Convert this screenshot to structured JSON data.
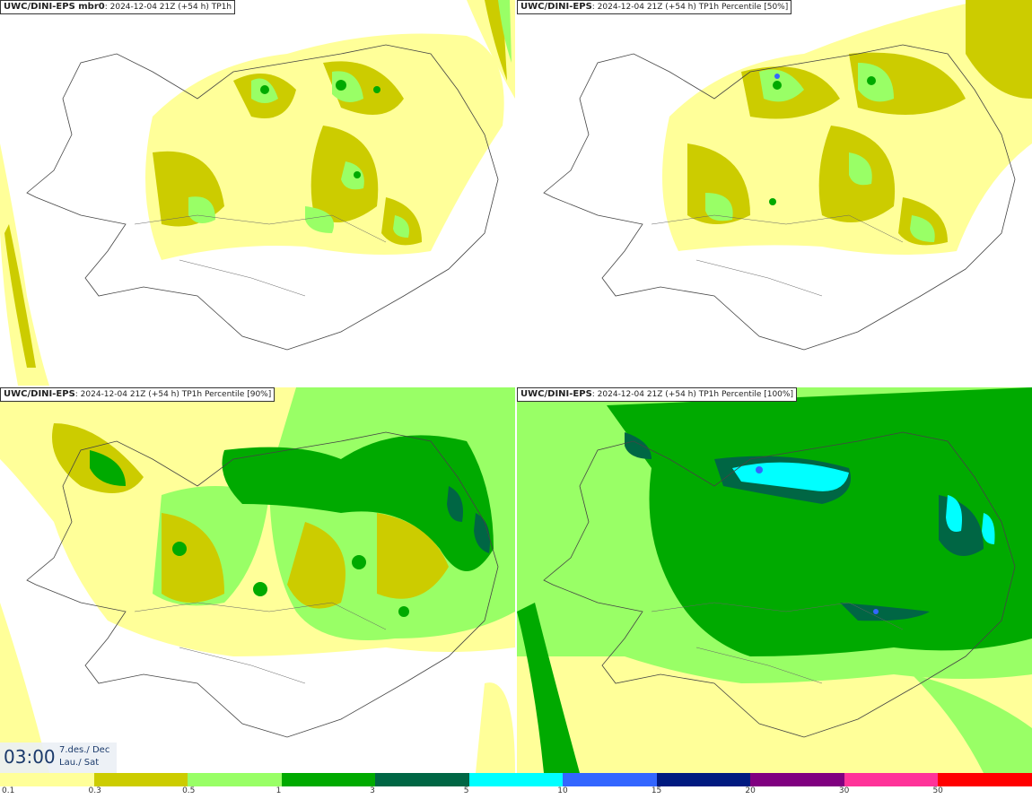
{
  "panels": [
    {
      "title_bold": "UWC/DINI-EPS mbr0",
      "title_rest": ": 2024-12-04 21Z (+54 h) TP1h"
    },
    {
      "title_bold": "UWC/DINI-EPS",
      "title_rest": ": 2024-12-04 21Z (+54 h) TP1h Percentile [50%]"
    },
    {
      "title_bold": "UWC/DINI-EPS",
      "title_rest": ": 2024-12-04 21Z (+54 h) TP1h Percentile [90%]"
    },
    {
      "title_bold": "UWC/DINI-EPS",
      "title_rest": ": 2024-12-04 21Z (+54 h) TP1h Percentile [100%]"
    }
  ],
  "valid_time": {
    "time": "03:00",
    "date_line1": "7.des./ Dec",
    "date_line2": "Lau./ Sat"
  },
  "legend": {
    "colors": [
      "#ffff99",
      "#cccc00",
      "#99ff66",
      "#00aa00",
      "#006644",
      "#00ffff",
      "#3366ff",
      "#001a80",
      "#800080",
      "#ff3399",
      "#ff0000"
    ],
    "labels": [
      "0.1",
      "0.3",
      "0.5",
      "1",
      "3",
      "5",
      "10",
      "15",
      "20",
      "30",
      "50"
    ]
  }
}
